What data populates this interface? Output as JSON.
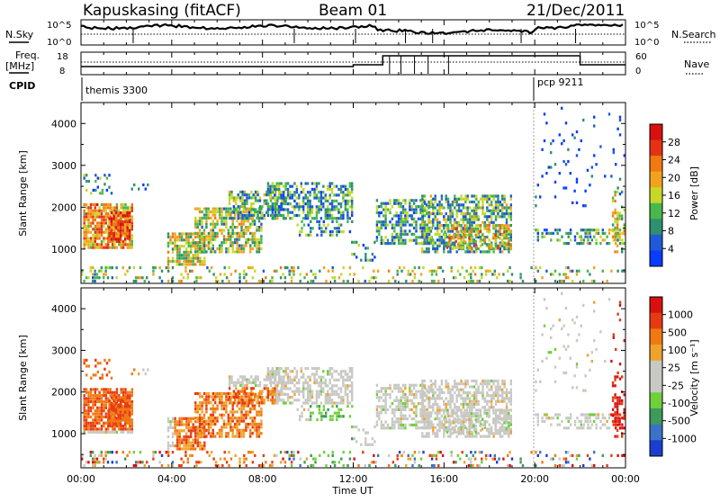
{
  "header": {
    "radar": "Kapuskasing (fitACF)",
    "beam": "Beam 01",
    "date": "21/Dec/2011"
  },
  "top_panels": {
    "nsky_label": "N.Sky",
    "nsky_ticks": [
      "10^5",
      "10^0"
    ],
    "nsearch_ticks": [
      "10^5",
      "10^0"
    ],
    "nsearch_label": "N.Search",
    "freq_label_1": "Freq.",
    "freq_label_2": "[MHz]",
    "freq_ticks": [
      "18",
      "8"
    ],
    "nave_ticks": [
      "60",
      "0"
    ],
    "nave_label": "Nave",
    "cpid_label": "CPID",
    "cpid_segments": [
      {
        "name": "themis 3300",
        "start_hour": 0,
        "end_hour": 20
      },
      {
        "name": "pcp 9211",
        "start_hour": 20,
        "end_hour": 24
      }
    ]
  },
  "colors": {
    "power_scale": [
      "#0a3cff",
      "#1f5ad8",
      "#2f8f6f",
      "#47b84a",
      "#c7d829",
      "#f3a21e",
      "#f07a12",
      "#e63214",
      "#d81010"
    ],
    "velocity_scale": [
      "#1a3fd0",
      "#3a72c8",
      "#3e9a5a",
      "#6fd03a",
      "#c8c8c4",
      "#c8c8c4",
      "#f0a32a",
      "#f07a12",
      "#e83a12",
      "#d81010"
    ]
  },
  "chart_data": [
    {
      "type": "heatmap",
      "name": "power-panel",
      "ylabel": "Slant Range [km]",
      "xlabel": "Time UT",
      "xlim_hours": [
        0,
        24
      ],
      "ylim_km": [
        180,
        4500
      ],
      "yticks": [
        "1000",
        "2000",
        "3000",
        "4000"
      ],
      "xticks": [
        "00:00",
        "04:00",
        "08:00",
        "12:00",
        "16:00",
        "20:00",
        "00:00"
      ],
      "colorbar_label": "Power [dB]",
      "colorbar_ticks": [
        "28",
        "24",
        "20",
        "16",
        "12",
        "8",
        "4"
      ],
      "colorbar_range": [
        0,
        30
      ]
    },
    {
      "type": "heatmap",
      "name": "velocity-panel",
      "ylabel": "Slant Range [km]",
      "xlabel": "Time UT",
      "xlim_hours": [
        0,
        24
      ],
      "ylim_km": [
        180,
        4500
      ],
      "yticks": [
        "1000",
        "2000",
        "3000",
        "4000"
      ],
      "xticks": [
        "00:00",
        "04:00",
        "08:00",
        "12:00",
        "16:00",
        "20:00",
        "00:00"
      ],
      "colorbar_label": "Velocity [m s⁻¹]",
      "colorbar_ticks": [
        "1000",
        "500",
        "100",
        "25",
        "-25",
        "-100",
        "-500",
        "-1000"
      ]
    }
  ],
  "axis": {
    "time_label": "Time UT",
    "range_label": "Slant Range [km]",
    "range_ticks": [
      "1000",
      "2000",
      "3000",
      "4000"
    ],
    "time_ticks": [
      "00:00",
      "04:00",
      "08:00",
      "12:00",
      "16:00",
      "20:00",
      "00:00"
    ]
  },
  "colorbars": {
    "power_label": "Power [dB]",
    "power_ticks": [
      "28",
      "24",
      "20",
      "16",
      "12",
      "8",
      "4"
    ],
    "velocity_label": "Velocity [m s⁻¹]",
    "velocity_ticks": [
      "1000",
      "500",
      "100",
      "25",
      "-25",
      "-100",
      "-500",
      "-1000"
    ]
  }
}
